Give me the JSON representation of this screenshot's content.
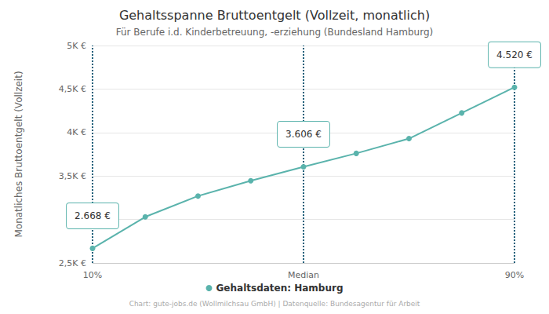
{
  "chart_data": {
    "type": "line",
    "title": "Gehaltsspanne Bruttoentgelt (Vollzeit, monatlich)",
    "subtitle": "Für Berufe i.d. Kinderbetreuung, -erziehung (Bundesland Hamburg)",
    "y_label": "Monatliches Bruttoentgelt (Vollzeit)",
    "source": "Chart: gute-jobs.de (Wollmilchsau GmbH) | Datenquelle: Bundesagentur für Arbeit",
    "categories": [
      "10%",
      null,
      null,
      null,
      "Median",
      null,
      null,
      null,
      "90%"
    ],
    "series": [
      {
        "name": "Gehaltsdaten: Hamburg",
        "color": "#5ab3ac",
        "marker": "circle",
        "values": [
          2668,
          3030,
          3270,
          3445,
          3606,
          3760,
          3930,
          4225,
          4520
        ]
      }
    ],
    "annotations": [
      {
        "x": "10%",
        "value": 2668,
        "label": "2.668 €"
      },
      {
        "x": "Median",
        "value": 3606,
        "label": "3.606 €"
      },
      {
        "x": "90%",
        "value": 4520,
        "label": "4.520 €"
      }
    ],
    "ylim": [
      2500,
      5000
    ],
    "yticks": [
      {
        "value": 2500,
        "label": "2,5K €"
      },
      {
        "value": 3000,
        "label": "3K €"
      },
      {
        "value": 3500,
        "label": "3,5K €"
      },
      {
        "value": 4000,
        "label": "4K €"
      },
      {
        "value": 4500,
        "label": "4,5K €"
      },
      {
        "value": 5000,
        "label": "5K €"
      }
    ],
    "grid": true,
    "legend": "bottom"
  }
}
